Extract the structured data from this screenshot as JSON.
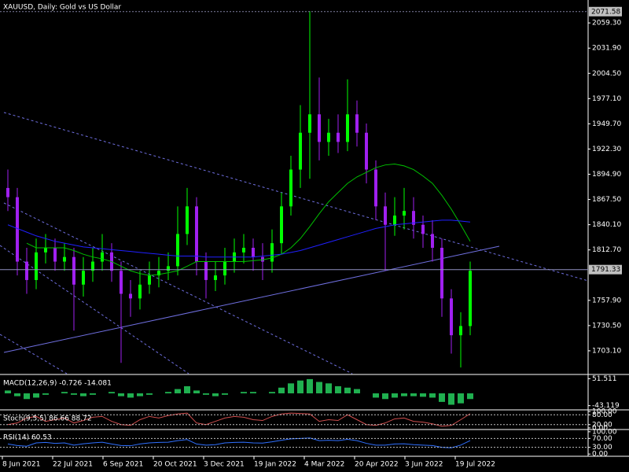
{
  "chart_data": [
    {
      "type": "candlestick",
      "title": "XAUUSD, Daily:  Gold vs US Dollar",
      "categories": [
        "8 Jun 2021",
        "22 Jul 2021",
        "6 Sep 2021",
        "20 Oct 2021",
        "3 Dec 2021",
        "19 Jan 2022",
        "4 Mar 2022",
        "20 Apr 2022",
        "3 Jun 2022",
        "19 Jul 2022"
      ],
      "open": [
        1880,
        1870,
        1800,
        1780,
        1810,
        1815,
        1800,
        1805,
        1775,
        1790,
        1800,
        1810,
        1790,
        1765,
        1760,
        1775,
        1785,
        1790,
        1795,
        1830,
        1860,
        1800,
        1780,
        1785,
        1800,
        1810,
        1815,
        1805,
        1800,
        1820,
        1860,
        1900,
        1940,
        1960,
        1930,
        1940,
        1930,
        1960,
        1940,
        1900,
        1860,
        1840,
        1850,
        1855,
        1840,
        1830,
        1815,
        1760,
        1720,
        1730
      ],
      "high": [
        1900,
        1880,
        1815,
        1825,
        1830,
        1825,
        1820,
        1815,
        1805,
        1815,
        1830,
        1820,
        1800,
        1780,
        1790,
        1800,
        1805,
        1810,
        1860,
        1880,
        1870,
        1810,
        1800,
        1815,
        1825,
        1830,
        1825,
        1820,
        1835,
        1875,
        1915,
        1970,
        2072,
        2000,
        1955,
        1960,
        1998,
        1975,
        1950,
        1910,
        1875,
        1870,
        1880,
        1870,
        1850,
        1845,
        1825,
        1770,
        1745,
        1800
      ],
      "low": [
        1855,
        1785,
        1765,
        1770,
        1798,
        1790,
        1790,
        1725,
        1762,
        1778,
        1790,
        1778,
        1690,
        1740,
        1748,
        1765,
        1772,
        1780,
        1785,
        1818,
        1785,
        1760,
        1768,
        1775,
        1788,
        1798,
        1790,
        1780,
        1788,
        1808,
        1850,
        1880,
        1890,
        1910,
        1915,
        1918,
        1920,
        1925,
        1885,
        1845,
        1790,
        1828,
        1835,
        1825,
        1815,
        1800,
        1740,
        1700,
        1685,
        1720
      ],
      "close": [
        1870,
        1800,
        1780,
        1810,
        1815,
        1800,
        1805,
        1775,
        1790,
        1800,
        1810,
        1790,
        1765,
        1760,
        1775,
        1785,
        1790,
        1795,
        1830,
        1860,
        1800,
        1780,
        1785,
        1800,
        1810,
        1815,
        1805,
        1800,
        1820,
        1860,
        1900,
        1940,
        1960,
        1930,
        1940,
        1930,
        1960,
        1940,
        1900,
        1860,
        1840,
        1850,
        1855,
        1840,
        1830,
        1815,
        1760,
        1720,
        1730,
        1790
      ],
      "up_color": "#00ff00",
      "down_color": "#a020f0",
      "lines": [
        {
          "color": "#00c000",
          "values": [
            null,
            null,
            1820,
            1815,
            1815,
            1815,
            1815,
            1812,
            1808,
            1805,
            1803,
            1800,
            1795,
            1790,
            1787,
            1785,
            1786,
            1788,
            1790,
            1795,
            1800,
            1800,
            1800,
            1800,
            1800,
            1800,
            1801,
            1802,
            1804,
            1808,
            1815,
            1825,
            1838,
            1852,
            1865,
            1875,
            1885,
            1892,
            1897,
            1902,
            1905,
            1906,
            1904,
            1900,
            1893,
            1885,
            1872,
            1857,
            1840,
            1822
          ]
        },
        {
          "color": "#2020ff",
          "values": [
            1840,
            1836,
            1832,
            1828,
            1825,
            1822,
            1820,
            1818,
            1816,
            1815,
            1814,
            1813,
            1812,
            1811,
            1810,
            1809,
            1808,
            1807,
            1806,
            1806,
            1806,
            1805,
            1805,
            1805,
            1805,
            1805,
            1805,
            1806,
            1807,
            1808,
            1810,
            1812,
            1815,
            1818,
            1821,
            1824,
            1827,
            1830,
            1833,
            1836,
            1838,
            1840,
            1841,
            1842,
            1843,
            1844,
            1845,
            1845,
            1844,
            1843
          ]
        }
      ],
      "price_tags": [
        2071.58,
        1791.33
      ],
      "ylim": [
        1677.4,
        2084.2
      ],
      "yticks": [
        {
          "value": 2059.3,
          "label": "2059.30"
        },
        {
          "value": 2031.9,
          "label": "2031.90"
        },
        {
          "value": 2004.5,
          "label": "2004.50"
        },
        {
          "value": 1977.1,
          "label": "1977.10"
        },
        {
          "value": 1949.7,
          "label": "1949.70"
        },
        {
          "value": 1922.3,
          "label": "1922.30"
        },
        {
          "value": 1894.9,
          "label": "1894.90"
        },
        {
          "value": 1867.5,
          "label": "1867.50"
        },
        {
          "value": 1840.1,
          "label": "1840.10"
        },
        {
          "value": 1812.7,
          "label": "1812.70"
        },
        {
          "value": 1757.9,
          "label": "1757.90"
        },
        {
          "value": 1730.5,
          "label": "1730.50"
        },
        {
          "value": 1703.1,
          "label": "1703.10"
        }
      ]
    },
    {
      "type": "histogram",
      "title": "MACD(12,26,9) -0.726 -14.081",
      "color": "#20b050",
      "values": [
        10,
        -10,
        -20,
        -15,
        -5,
        0,
        5,
        -5,
        -10,
        -5,
        0,
        5,
        -10,
        -15,
        -10,
        -5,
        0,
        5,
        15,
        25,
        10,
        -5,
        -10,
        -5,
        0,
        5,
        5,
        0,
        5,
        20,
        35,
        45,
        50,
        40,
        35,
        25,
        20,
        15,
        0,
        -15,
        -20,
        -15,
        -10,
        -10,
        -12,
        -15,
        -30,
        -40,
        -35,
        -20
      ],
      "ylim": [
        -57.9,
        66.3
      ],
      "yticks": [
        51.511,
        -43.119
      ]
    },
    {
      "type": "line",
      "title": "Stoch(9,5,5) 86.66 88.72",
      "color": "#d05050",
      "values": [
        20,
        30,
        60,
        70,
        40,
        50,
        60,
        30,
        45,
        65,
        70,
        40,
        20,
        15,
        50,
        70,
        60,
        75,
        85,
        90,
        30,
        20,
        40,
        60,
        70,
        65,
        50,
        45,
        70,
        85,
        90,
        88,
        85,
        40,
        50,
        45,
        80,
        50,
        20,
        15,
        30,
        55,
        60,
        40,
        35,
        25,
        10,
        15,
        50,
        86.66
      ],
      "levels": [
        80,
        20
      ],
      "ylim": [
        -10,
        110
      ],
      "yticks": [
        {
          "value": 100,
          "label": "100.00"
        },
        {
          "value": 80,
          "label": "80.00"
        },
        {
          "value": 20,
          "label": "20.00"
        },
        {
          "value": 0,
          "label": "0.00"
        }
      ]
    },
    {
      "type": "line",
      "title": "RSI(14) 60.53",
      "color": "#3070ff",
      "values": [
        45,
        38,
        35,
        50,
        52,
        48,
        50,
        40,
        46,
        50,
        53,
        45,
        38,
        37,
        45,
        50,
        52,
        53,
        60,
        65,
        45,
        40,
        42,
        50,
        52,
        53,
        50,
        49,
        55,
        62,
        68,
        70,
        72,
        60,
        62,
        60,
        66,
        60,
        48,
        40,
        40,
        45,
        46,
        42,
        40,
        38,
        30,
        28,
        40,
        60.53
      ],
      "levels": [
        70,
        30
      ],
      "ylim": [
        -10,
        110
      ],
      "yticks": [
        {
          "value": 100,
          "label": "100.00"
        },
        {
          "value": 70,
          "label": "70.00"
        },
        {
          "value": 30,
          "label": "30.00"
        },
        {
          "value": 0,
          "label": "0.00"
        }
      ]
    }
  ]
}
